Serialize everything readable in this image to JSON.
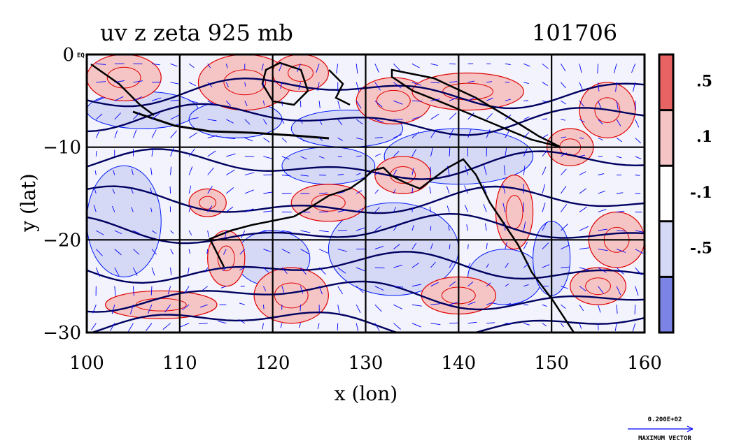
{
  "chart_data": {
    "type": "heatmap",
    "title": "uv z zeta 925 mb",
    "subtitle": "101706",
    "xlabel": "x (lon)",
    "ylabel": "y (lat)",
    "xlim": [
      100,
      160
    ],
    "ylim": [
      -30,
      0
    ],
    "x_ticks": [
      {
        "value": 100,
        "label": "100"
      },
      {
        "value": 110,
        "label": "110"
      },
      {
        "value": 120,
        "label": "120"
      },
      {
        "value": 130,
        "label": "130"
      },
      {
        "value": 140,
        "label": "140"
      },
      {
        "value": 150,
        "label": "150"
      },
      {
        "value": 160,
        "label": "160"
      }
    ],
    "y_ticks": [
      {
        "value": 0,
        "label": "0"
      },
      {
        "value": -10,
        "label": "−10"
      },
      {
        "value": -20,
        "label": "−20"
      },
      {
        "value": -30,
        "label": "−30"
      }
    ],
    "y_tick_suffix": "EQ",
    "grid": true,
    "grid_x": [
      110,
      120,
      130,
      140,
      150
    ],
    "grid_y": [
      -10,
      -20
    ],
    "colorbar": {
      "position": "right",
      "levels": [
        {
          "label": ".5",
          "color": "#e86464"
        },
        {
          "label": ".1",
          "color": "#f5c5c5"
        },
        {
          "label": "-.1",
          "color": "#ffffff"
        },
        {
          "label": "-.5",
          "color": "#d6d9f5"
        },
        {
          "label": "",
          "color": "#7c84e6"
        }
      ],
      "tick_labels": [
        ".5",
        ".1",
        "-.1",
        "-.5"
      ]
    },
    "colors": {
      "positive_strong": "#e86464",
      "positive_weak": "#f5c5c5",
      "negative_weak": "#d6d9f5",
      "negative_strong": "#7c84e6",
      "positive_contour": "#e00000",
      "negative_contour": "#0018ff",
      "height_contour": "#000060",
      "vector": "#0000ff",
      "coastline": "#000000"
    },
    "positive_zeta_regions": [
      {
        "lon": 104,
        "lat": -2.5,
        "rx": 4,
        "ry": 2.5
      },
      {
        "lon": 117,
        "lat": -3,
        "rx": 5,
        "ry": 3
      },
      {
        "lon": 123,
        "lat": -2,
        "rx": 3,
        "ry": 2
      },
      {
        "lon": 133,
        "lat": -5,
        "rx": 4,
        "ry": 2.5
      },
      {
        "lon": 141,
        "lat": -4,
        "rx": 6,
        "ry": 2
      },
      {
        "lon": 156,
        "lat": -6,
        "rx": 3,
        "ry": 3
      },
      {
        "lon": 152,
        "lat": -10,
        "rx": 2.5,
        "ry": 2
      },
      {
        "lon": 126,
        "lat": -16,
        "rx": 4,
        "ry": 2
      },
      {
        "lon": 134,
        "lat": -13,
        "rx": 3,
        "ry": 2
      },
      {
        "lon": 146,
        "lat": -17,
        "rx": 2,
        "ry": 4
      },
      {
        "lon": 157,
        "lat": -20,
        "rx": 3,
        "ry": 3
      },
      {
        "lon": 155,
        "lat": -25,
        "rx": 3,
        "ry": 2
      },
      {
        "lon": 140,
        "lat": -26,
        "rx": 4,
        "ry": 2
      },
      {
        "lon": 122,
        "lat": -26,
        "rx": 4,
        "ry": 3
      },
      {
        "lon": 108,
        "lat": -27,
        "rx": 6,
        "ry": 1.5
      },
      {
        "lon": 115,
        "lat": -22,
        "rx": 2,
        "ry": 3
      },
      {
        "lon": 113,
        "lat": -16,
        "rx": 2,
        "ry": 1.5
      }
    ],
    "negative_zeta_regions": [
      {
        "lon": 106,
        "lat": -6,
        "rx": 6,
        "ry": 2
      },
      {
        "lon": 116,
        "lat": -7,
        "rx": 5,
        "ry": 2
      },
      {
        "lon": 128,
        "lat": -8,
        "rx": 6,
        "ry": 2
      },
      {
        "lon": 140,
        "lat": -11,
        "rx": 8,
        "ry": 3
      },
      {
        "lon": 126,
        "lat": -12,
        "rx": 5,
        "ry": 2
      },
      {
        "lon": 133,
        "lat": -21,
        "rx": 7,
        "ry": 5
      },
      {
        "lon": 120,
        "lat": -22,
        "rx": 4,
        "ry": 3
      },
      {
        "lon": 145,
        "lat": -24,
        "rx": 4,
        "ry": 3
      },
      {
        "lon": 104,
        "lat": -18,
        "rx": 4,
        "ry": 6
      },
      {
        "lon": 150,
        "lat": -22,
        "rx": 2,
        "ry": 4
      }
    ],
    "height_contours_lat": [
      -4,
      -7,
      -12,
      -16,
      -19,
      -23,
      -26,
      -29
    ],
    "wind_field_note": "",
    "legend": {
      "vector_magnitude_label": "0.200E+02",
      "vector_label": "MAXIMUM VECTOR"
    }
  }
}
